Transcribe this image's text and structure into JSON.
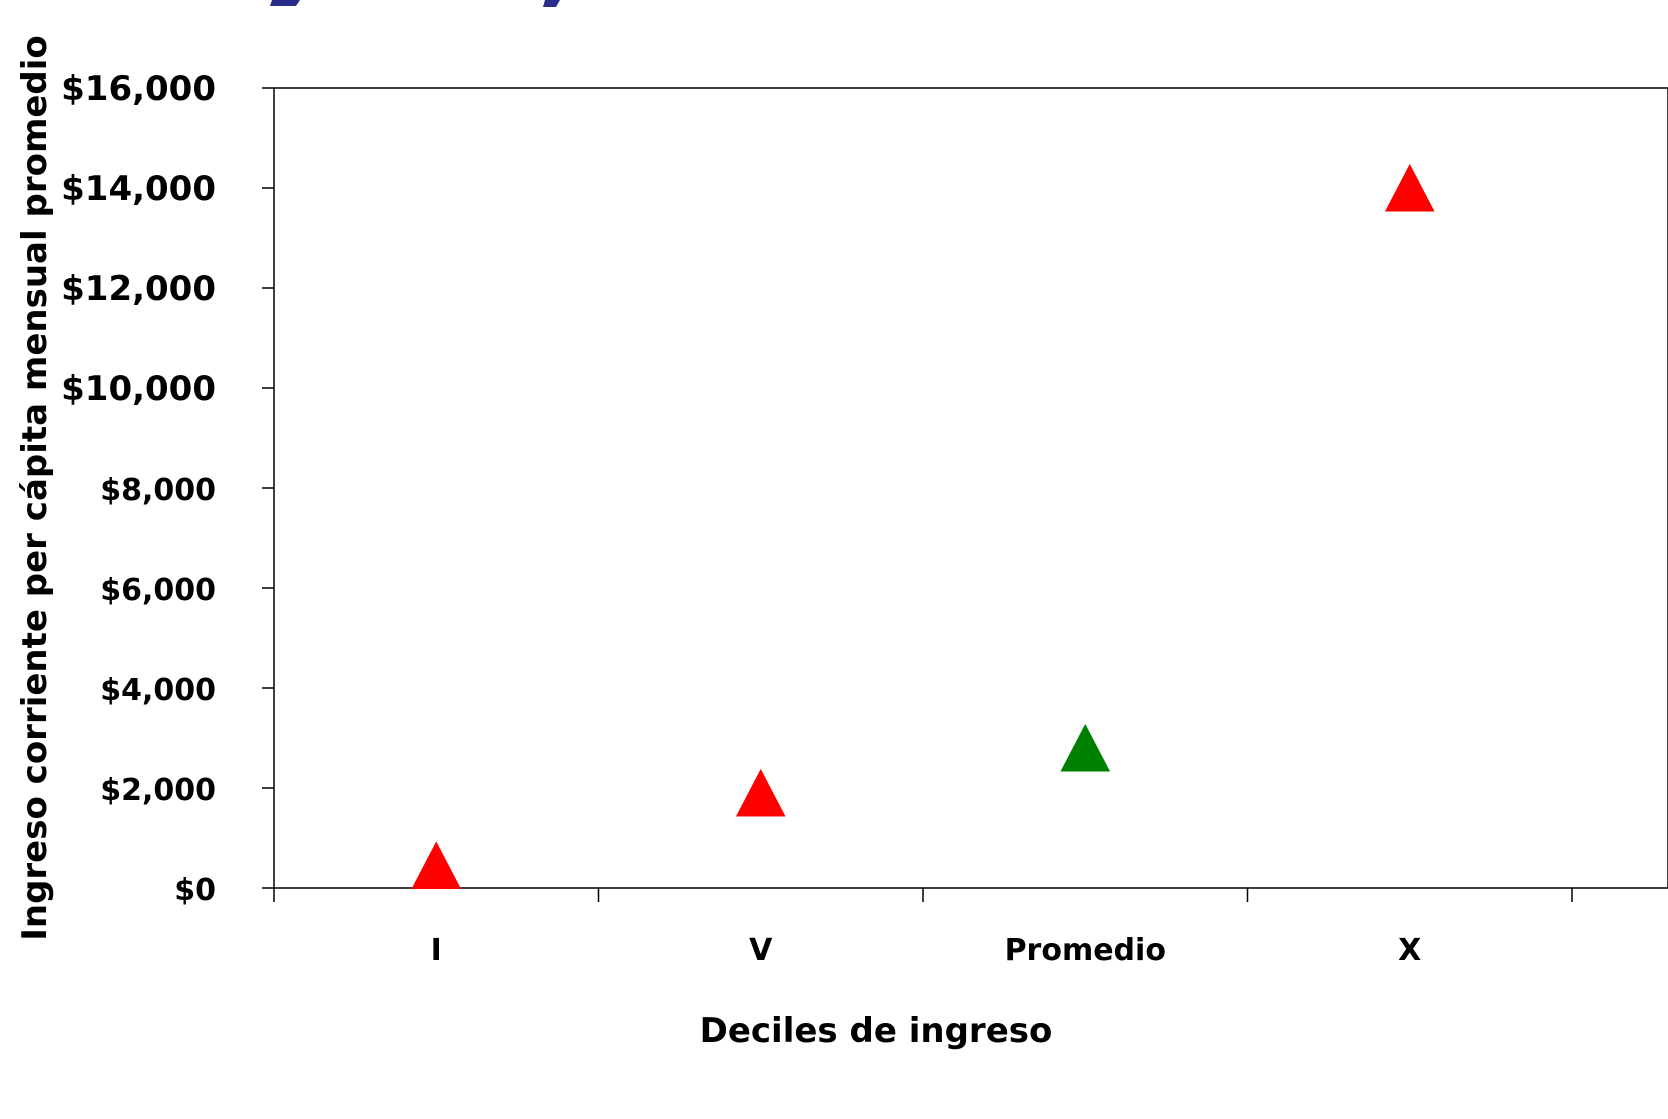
{
  "chart_data": {
    "type": "scatter",
    "marker": "triangle",
    "categories": [
      "I",
      "V",
      "Promedio",
      "X"
    ],
    "values": [
      450,
      1900,
      2800,
      14000
    ],
    "point_colors": [
      "#ff0000",
      "#ff0000",
      "#008000",
      "#ff0000"
    ],
    "xlabel": "Deciles de ingreso",
    "ylabel": "Ingreso corriente per cápita mensual promedio",
    "ylim": [
      0,
      16000
    ],
    "yticks": [
      0,
      2000,
      4000,
      6000,
      8000,
      10000,
      12000,
      14000,
      16000
    ],
    "ytick_labels": [
      "$0",
      "$2,000",
      "$4,000",
      "$6,000",
      "$8,000",
      "$10,000",
      "$12,000",
      "$14,000",
      "$16,000"
    ],
    "grid": false,
    "legend": "none"
  }
}
